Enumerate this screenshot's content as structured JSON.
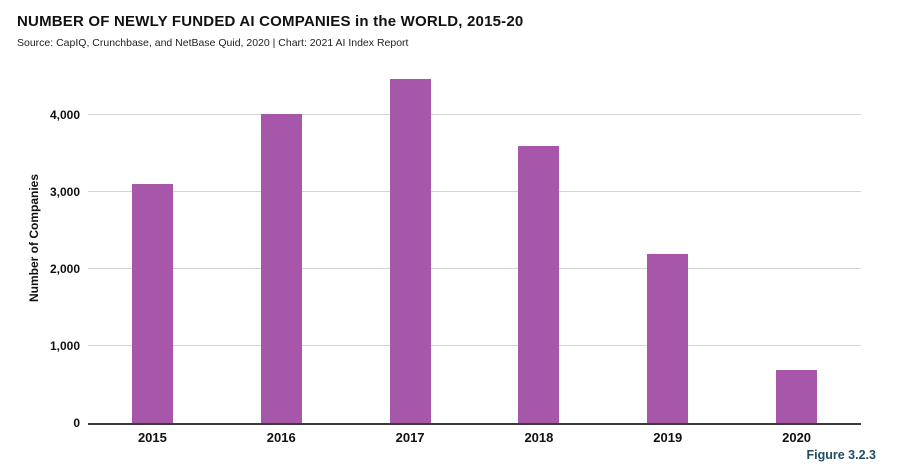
{
  "header": {
    "title": "NUMBER OF NEWLY FUNDED AI COMPANIES in the WORLD, 2015-20",
    "source": "Source: CapIQ, Crunchbase, and NetBase Quid, 2020 | Chart: 2021 AI Index Report"
  },
  "figure_label": "Figure 3.2.3",
  "colors": {
    "bar": "#a757a9",
    "gridline": "#d4d4d4",
    "axis_line": "#3b3b3b",
    "text": "#111111",
    "figure_label": "#1e4e63"
  },
  "chart_data": {
    "type": "bar",
    "title": "NUMBER OF NEWLY FUNDED AI COMPANIES in the WORLD, 2015-20",
    "subtitle": "Source: CapIQ, Crunchbase, and NetBase Quid, 2020 | Chart: 2021 AI Index Report",
    "categories": [
      "2015",
      "2016",
      "2017",
      "2018",
      "2019",
      "2020"
    ],
    "values": [
      3110,
      4020,
      4470,
      3600,
      2200,
      690
    ],
    "series_name": "Newly Funded AI Companies",
    "xlabel": "",
    "ylabel": "Number of Companies",
    "ylim": [
      0,
      4585
    ],
    "yticks": [
      {
        "value": 0,
        "label": "0"
      },
      {
        "value": 1000,
        "label": "1,000"
      },
      {
        "value": 2000,
        "label": "2,000"
      },
      {
        "value": 3000,
        "label": "3,000"
      },
      {
        "value": 4000,
        "label": "4,000"
      }
    ],
    "grid": "horizontal",
    "legend_position": "none",
    "bar_color": "#a757a9"
  }
}
